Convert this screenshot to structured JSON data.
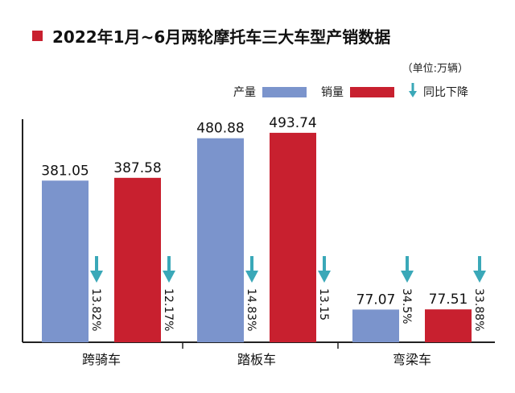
{
  "title": "2022年1月~6月两轮摩托车三大车型产销数据",
  "unit": "（单位:万辆）",
  "legend": [
    {
      "label": "产量",
      "color": "#7b94cc",
      "kind": "bar"
    },
    {
      "label": "销量",
      "color": "#c8202f",
      "kind": "bar"
    },
    {
      "label": "同比下降",
      "color": "#3aa8b8",
      "kind": "arrow"
    }
  ],
  "chart_data": {
    "type": "bar",
    "title": "2022年1月~6月两轮摩托车三大车型产销数据",
    "categories": [
      "跨骑车",
      "踏板车",
      "弯梁车"
    ],
    "series": [
      {
        "name": "产量",
        "values": [
          381.05,
          480.88,
          77.07
        ],
        "value_labels": [
          "381.05",
          "480.88",
          "77.07"
        ],
        "yoy_decline": [
          "13.82%",
          "14.83%",
          "34.5%"
        ],
        "color": "#7b94cc"
      },
      {
        "name": "销量",
        "values": [
          387.58,
          493.74,
          77.51
        ],
        "value_labels": [
          "387.58",
          "493.74",
          "77.51"
        ],
        "yoy_decline": [
          "12.17%",
          "13.15",
          "33.88%"
        ],
        "color": "#c8202f"
      }
    ],
    "ylim": [
      0,
      560
    ],
    "grid": false,
    "legend_position": "top-right",
    "unit": "（单位:万辆）"
  }
}
